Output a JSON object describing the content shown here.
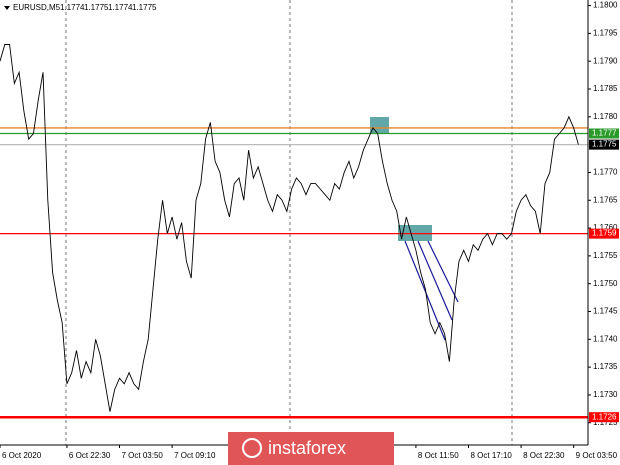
{
  "header": {
    "symbol": "EURUSD,M5",
    "ohlc": [
      1.1774,
      1.1775,
      1.1774,
      1.1775
    ]
  },
  "watermark": "instaforex",
  "chart_data": {
    "type": "line",
    "values": [
      1.179,
      1.1793,
      1.1793,
      1.1786,
      1.1788,
      1.1781,
      1.1776,
      1.1777,
      1.1783,
      1.1788,
      1.1765,
      1.1752,
      1.1747,
      1.1743,
      1.1732,
      1.1734,
      1.1738,
      1.1733,
      1.1736,
      1.1734,
      1.174,
      1.1737,
      1.1732,
      1.1727,
      1.1731,
      1.1733,
      1.1732,
      1.1734,
      1.1732,
      1.1731,
      1.1736,
      1.174,
      1.1749,
      1.1758,
      1.1765,
      1.1759,
      1.1762,
      1.1758,
      1.1761,
      1.1754,
      1.1751,
      1.1765,
      1.1768,
      1.1776,
      1.1779,
      1.1772,
      1.177,
      1.1765,
      1.1762,
      1.1768,
      1.1769,
      1.1765,
      1.1774,
      1.1769,
      1.1771,
      1.1768,
      1.1765,
      1.1763,
      1.1766,
      1.1765,
      1.1763,
      1.1767,
      1.1769,
      1.1768,
      1.1766,
      1.1768,
      1.1768,
      1.1767,
      1.1766,
      1.1765,
      1.1768,
      1.1767,
      1.177,
      1.1772,
      1.1769,
      1.1771,
      1.1774,
      1.1776,
      1.1778,
      1.1777,
      1.1772,
      1.1768,
      1.1765,
      1.1763,
      1.1758,
      1.1762,
      1.1759,
      1.1756,
      1.1752,
      1.1749,
      1.1743,
      1.1741,
      1.1743,
      1.1741,
      1.1736,
      1.1747,
      1.1754,
      1.1756,
      1.1754,
      1.1757,
      1.1756,
      1.1758,
      1.1759,
      1.1757,
      1.1759,
      1.1759,
      1.1758,
      1.1759,
      1.1763,
      1.1765,
      1.1766,
      1.1764,
      1.1763,
      1.1759,
      1.1768,
      1.177,
      1.1776,
      1.1777,
      1.1778,
      1.178,
      1.1778,
      1.1775
    ],
    "color": "#000000",
    "xlim": [
      0,
      123
    ],
    "xticks": [
      {
        "value": 0,
        "label": "6 Oct 2020"
      },
      {
        "value": 14,
        "label": "6 Oct 22:30"
      },
      {
        "value": 25,
        "label": "7 Oct 03:50"
      },
      {
        "value": 36,
        "label": "7 Oct 09:10"
      },
      {
        "value": 87,
        "label": "8 Oct 11:50"
      },
      {
        "value": 98,
        "label": "8 Oct 17:10"
      },
      {
        "value": 109,
        "label": "8 Oct 22:30"
      },
      {
        "value": 120,
        "label": "9 Oct 03:50"
      }
    ],
    "ylim": [
      1.1721,
      1.1801
    ],
    "yticks": [
      {
        "value": 1.18,
        "label": "1.1800"
      },
      1.1795,
      {
        "value": 1.179,
        "label": "1.1790"
      },
      1.1785,
      {
        "value": 1.178,
        "label": "1.1780"
      },
      {
        "value": 1.177,
        "label": "1.1770"
      },
      1.1765,
      {
        "value": 1.176,
        "label": "1.1760"
      },
      1.1755,
      {
        "value": 1.175,
        "label": "1.1750"
      },
      1.1745,
      {
        "value": 1.174,
        "label": "1.1740"
      },
      1.1735,
      {
        "value": 1.173,
        "label": "1.1730"
      },
      1.1725
    ],
    "levels": [
      {
        "value": 1.1778,
        "color": "#e8862a"
      },
      {
        "value": 1.1777,
        "color": "#2a9a2a"
      },
      {
        "value": 1.1775,
        "color": "#bbbbbb"
      },
      {
        "value": 1.1759,
        "color": "#ff0000"
      },
      {
        "value": 1.1726,
        "color": "#ff0000"
      }
    ]
  }
}
